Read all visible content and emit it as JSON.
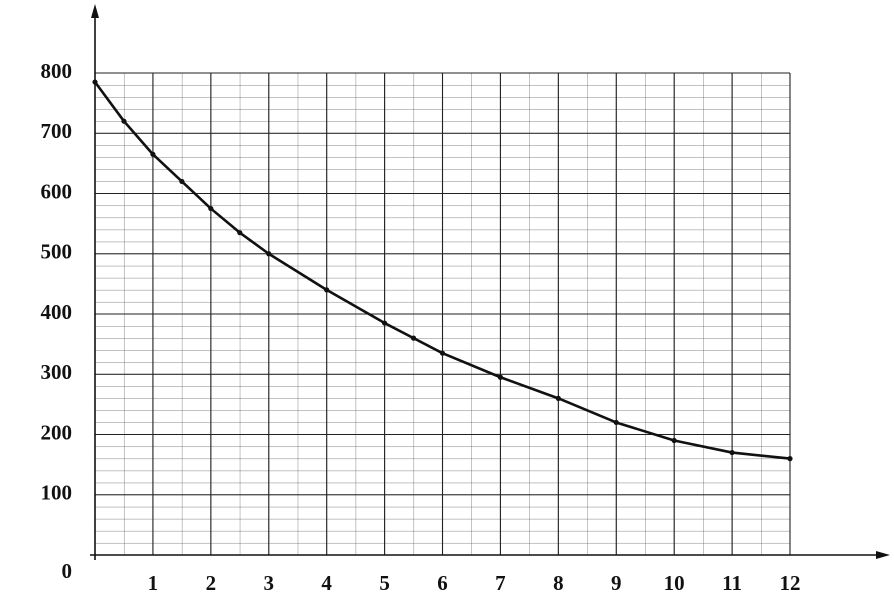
{
  "chart_data": {
    "type": "line",
    "x": [
      0,
      0.5,
      1,
      1.5,
      2,
      2.5,
      3,
      4,
      5,
      5.5,
      6,
      7,
      8,
      9,
      10,
      11,
      12
    ],
    "series": [
      {
        "color": "#111111",
        "values": [
          785,
          720,
          665,
          620,
          575,
          535,
          500,
          440,
          385,
          360,
          335,
          295,
          260,
          220,
          190,
          170,
          160
        ]
      }
    ],
    "xlim": [
      0,
      12
    ],
    "xticks": [
      1,
      2,
      3,
      4,
      5,
      6,
      7,
      8,
      9,
      10,
      11,
      12
    ],
    "ylim": [
      0,
      800
    ],
    "yticks": [
      0,
      100,
      200,
      300,
      400,
      500,
      600,
      700,
      800
    ],
    "grid": true
  }
}
